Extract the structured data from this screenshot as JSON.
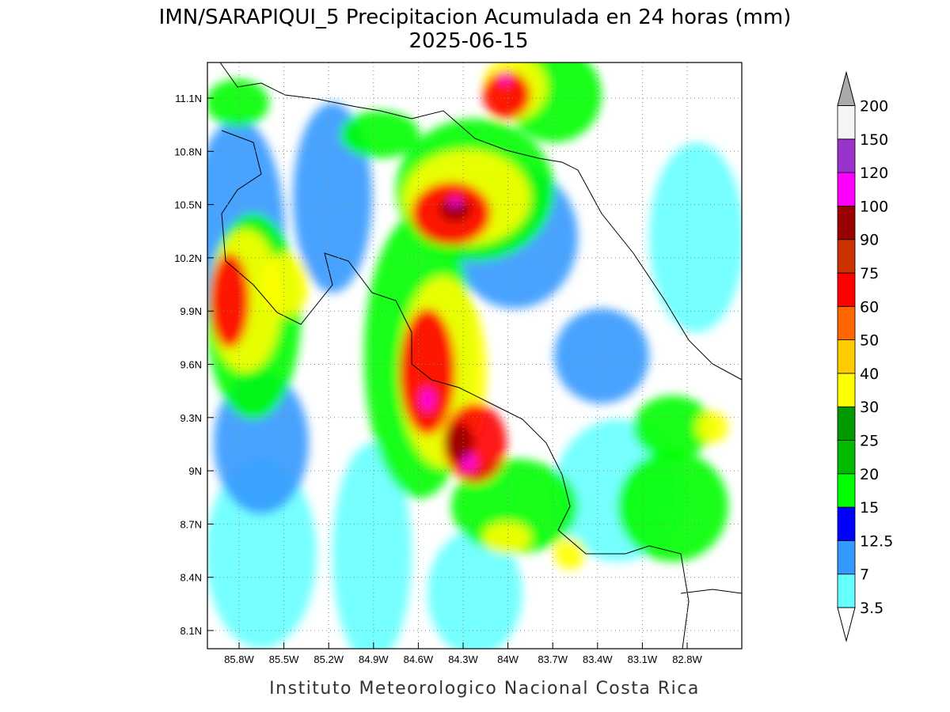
{
  "title": "IMN/SARAPIQUI_5 Precipitacion Acumulada en 24 horas (mm)",
  "subtitle": "2025-06-15",
  "map": {
    "lat_ticks": [
      "11.1N",
      "10.8N",
      "10.5N",
      "10.2N",
      "9.9N",
      "9.6N",
      "9.3N",
      "9N",
      "8.7N",
      "8.4N",
      "8.1N"
    ],
    "lon_ticks": [
      "85.8W",
      "85.5W",
      "85.2W",
      "84.9W",
      "84.6W",
      "84.3W",
      "84W",
      "83.7W",
      "83.4W",
      "83.1W",
      "82.8W"
    ]
  },
  "colorbar": {
    "levels": [
      3.5,
      7,
      12.5,
      15,
      20,
      25,
      30,
      40,
      50,
      60,
      75,
      90,
      100,
      120,
      150,
      200
    ],
    "colors": [
      "#66ffff",
      "#3399ff",
      "#0000ff",
      "#00ff00",
      "#00bb00",
      "#009900",
      "#ffff00",
      "#ffcc00",
      "#ff6600",
      "#ff0000",
      "#cc3300",
      "#990000",
      "#ff00ff",
      "#9933cc",
      "#f5f5f5"
    ],
    "over_color": "#aaaaaa",
    "under_color": "#ffffff"
  },
  "footer": "Instituto Meteorologico Nacional Costa Rica"
}
